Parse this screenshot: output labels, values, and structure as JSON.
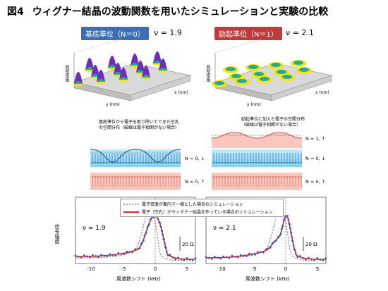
{
  "header": {
    "number": "図4",
    "title": "ウィグナー結晶の波動関数を用いたシミュレーションと実験の比較"
  },
  "left_top": {
    "badge": "基底準位（N＝0）",
    "badge_color": "#3a6fb7",
    "nu": "ν = 1.9",
    "zlabel": "局所密度",
    "xlabel": "x (nm)",
    "ylabel": "y (nm)",
    "ticks_x": [
      "250",
      "200",
      "150",
      "100",
      "50",
      "0"
    ],
    "ticks_y": [
      "0",
      "50",
      "100",
      "150",
      "200",
      "250"
    ]
  },
  "right_top": {
    "badge": "励起準位（N＝1）",
    "badge_color": "#c23b3b",
    "nu": "ν = 2.1",
    "zlabel": "局所密度",
    "xlabel": "x (nm)",
    "ylabel": "y (nm)",
    "ticks_x": [
      "250",
      "200",
      "150",
      "100",
      "50",
      "0"
    ],
    "ticks_y": [
      "0",
      "50",
      "100",
      "150",
      "200",
      "250"
    ]
  },
  "left_mid": {
    "note1": "基底準位から電子を取り除いてできた空孔",
    "note2": "の空間分布（破線は電子相関がない場合）",
    "state1": "N = 0, ↓",
    "state2": "N = 0, ↑"
  },
  "right_mid": {
    "note1": "励起準位に加えた電子の空間分布",
    "note2": "（破線は電子相関がない場合）",
    "state0": "N = 1, ↑",
    "state1": "N = 0, ↓",
    "state2": "N = 0, ↑"
  },
  "legend": {
    "dashed": "電子密度が面内で一様とした場合のシミュレーション",
    "red": "電子（空孔）がウィグナー結晶を作っている場合のシミュレーション"
  },
  "plots": {
    "ylabel": "信号強度",
    "left": {
      "nu": "ν = 1.9",
      "scale": "20 Ω",
      "xlabel": "周波数シフト (kHz)",
      "ticks": [
        "-10",
        "-5",
        "0",
        "5"
      ]
    },
    "right": {
      "nu": "ν = 2.1",
      "scale": "20 Ω",
      "xlabel": "周波数シフト (kHz)",
      "ticks": [
        "-10",
        "-5",
        "0",
        "5"
      ]
    }
  },
  "colors": {
    "band_blue": "#7fd3f2",
    "band_pink": "#f9c7bd",
    "red_curve": "#e0262b",
    "data_points": "#3b4cc0"
  }
}
